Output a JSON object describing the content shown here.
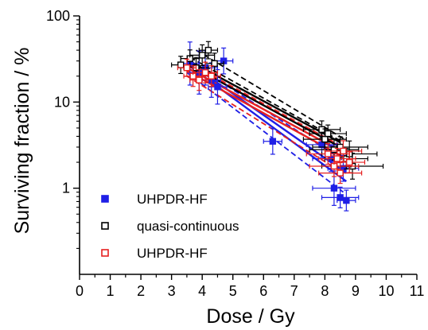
{
  "chart_data": {
    "type": "scatter",
    "title": "",
    "xlabel": "Dose / Gy",
    "ylabel": "Surviving fraction / %",
    "xlim": [
      0,
      11
    ],
    "ylim": [
      0.1,
      100
    ],
    "yscale": "log",
    "x_ticks": [
      0,
      1,
      2,
      3,
      4,
      5,
      6,
      7,
      8,
      9,
      10,
      11
    ],
    "y_ticks": [
      1,
      10,
      100
    ],
    "x_tick_labels": [
      "0",
      "1",
      "2",
      "3",
      "4",
      "5",
      "6",
      "7",
      "8",
      "9",
      "10",
      "11"
    ],
    "y_tick_labels": [
      "1",
      "10",
      "100"
    ],
    "grid": false,
    "legend_position": "bottom-left",
    "series": [
      {
        "name": "UHPDR-HF",
        "color": "#1f1fe6",
        "marker": "filled-square",
        "points": [
          {
            "x": 3.6,
            "y": 28,
            "xerr": 0.3,
            "yerr": 0.25
          },
          {
            "x": 3.9,
            "y": 22,
            "xerr": 0.3,
            "yerr": 0.25
          },
          {
            "x": 4.1,
            "y": 25,
            "xerr": 0.4,
            "yerr": 0.2
          },
          {
            "x": 4.3,
            "y": 18,
            "xerr": 0.3,
            "yerr": 0.2
          },
          {
            "x": 4.7,
            "y": 30,
            "xerr": 0.3,
            "yerr": 0.15
          },
          {
            "x": 4.5,
            "y": 15,
            "xerr": 0.3,
            "yerr": 0.2
          },
          {
            "x": 6.3,
            "y": 3.5,
            "xerr": 0.3,
            "yerr": 0.15
          },
          {
            "x": 7.9,
            "y": 3.2,
            "xerr": 0.5,
            "yerr": 0.15
          },
          {
            "x": 8.2,
            "y": 2.2,
            "xerr": 0.6,
            "yerr": 0.15
          },
          {
            "x": 8.3,
            "y": 1.0,
            "xerr": 0.7,
            "yerr": 0.2
          },
          {
            "x": 8.5,
            "y": 0.78,
            "xerr": 0.6,
            "yerr": 0.12
          },
          {
            "x": 8.7,
            "y": 0.72,
            "xerr": 0.3,
            "yerr": 0.12
          },
          {
            "x": 8.6,
            "y": 1.7,
            "xerr": 0.5,
            "yerr": 0.15
          }
        ],
        "fits": [
          {
            "x": [
              3.6,
              8.7
            ],
            "y": [
              26,
              1.2
            ],
            "style": "solid"
          },
          {
            "x": [
              3.6,
              8.7
            ],
            "y": [
              28,
              1.5
            ],
            "style": "solid"
          },
          {
            "x": [
              3.5,
              8.6
            ],
            "y": [
              22,
              0.9
            ],
            "style": "dashed"
          },
          {
            "x": [
              3.6,
              8.8
            ],
            "y": [
              29,
              1.9
            ],
            "style": "dashed"
          }
        ]
      },
      {
        "name": "quasi-continuous",
        "color": "#000000",
        "marker": "open-square",
        "points": [
          {
            "x": 3.3,
            "y": 27,
            "xerr": 0.3,
            "yerr": 0.1
          },
          {
            "x": 3.6,
            "y": 32,
            "xerr": 0.3,
            "yerr": 0.1
          },
          {
            "x": 3.8,
            "y": 25,
            "xerr": 0.4,
            "yerr": 0.12
          },
          {
            "x": 4.0,
            "y": 35,
            "xerr": 0.4,
            "yerr": 0.12
          },
          {
            "x": 4.2,
            "y": 40,
            "xerr": 0.3,
            "yerr": 0.1
          },
          {
            "x": 4.4,
            "y": 28,
            "xerr": 0.3,
            "yerr": 0.12
          },
          {
            "x": 7.9,
            "y": 4.8,
            "xerr": 0.6,
            "yerr": 0.1
          },
          {
            "x": 8.0,
            "y": 3.7,
            "xerr": 0.7,
            "yerr": 0.12
          },
          {
            "x": 8.1,
            "y": 4.3,
            "xerr": 0.6,
            "yerr": 0.1
          },
          {
            "x": 8.3,
            "y": 2.8,
            "xerr": 0.8,
            "yerr": 0.12
          },
          {
            "x": 8.5,
            "y": 3.0,
            "xerr": 0.9,
            "yerr": 0.12
          },
          {
            "x": 8.7,
            "y": 2.2,
            "xerr": 0.7,
            "yerr": 0.12
          },
          {
            "x": 8.9,
            "y": 1.8,
            "xerr": 1.0,
            "yerr": 0.15
          },
          {
            "x": 8.8,
            "y": 2.5,
            "xerr": 0.9,
            "yerr": 0.15
          }
        ],
        "fits": [
          {
            "x": [
              3.5,
              8.5
            ],
            "y": [
              28,
              3.0
            ],
            "style": "solid"
          },
          {
            "x": [
              3.5,
              8.5
            ],
            "y": [
              31,
              3.4
            ],
            "style": "solid"
          },
          {
            "x": [
              3.6,
              8.6
            ],
            "y": [
              33,
              3.4
            ],
            "style": "dashed"
          },
          {
            "x": [
              3.8,
              8.7
            ],
            "y": [
              40,
              3.6
            ],
            "style": "dashed"
          }
        ]
      },
      {
        "name": "UHPDR-HF",
        "color": "#e62020",
        "marker": "open-square",
        "points": [
          {
            "x": 3.5,
            "y": 25,
            "xerr": 0.3,
            "yerr": 0.1
          },
          {
            "x": 3.7,
            "y": 20,
            "xerr": 0.3,
            "yerr": 0.12
          },
          {
            "x": 3.9,
            "y": 18,
            "xerr": 0.3,
            "yerr": 0.12
          },
          {
            "x": 4.1,
            "y": 22,
            "xerr": 0.4,
            "yerr": 0.12
          },
          {
            "x": 4.3,
            "y": 20,
            "xerr": 0.3,
            "yerr": 0.12
          },
          {
            "x": 8.1,
            "y": 2.5,
            "xerr": 0.7,
            "yerr": 0.12
          },
          {
            "x": 8.3,
            "y": 1.8,
            "xerr": 0.8,
            "yerr": 0.12
          },
          {
            "x": 8.4,
            "y": 2.2,
            "xerr": 0.6,
            "yerr": 0.12
          },
          {
            "x": 8.5,
            "y": 1.5,
            "xerr": 0.7,
            "yerr": 0.12
          },
          {
            "x": 8.6,
            "y": 2.7,
            "xerr": 0.6,
            "yerr": 0.12
          },
          {
            "x": 8.8,
            "y": 2.0,
            "xerr": 0.5,
            "yerr": 0.12
          }
        ],
        "fits": [
          {
            "x": [
              3.5,
              8.6
            ],
            "y": [
              23,
              2.3
            ],
            "style": "solid"
          },
          {
            "x": [
              3.5,
              8.6
            ],
            "y": [
              25,
              2.6
            ],
            "style": "solid"
          },
          {
            "x": [
              3.5,
              8.6
            ],
            "y": [
              20,
              1.5
            ],
            "style": "dashed"
          },
          {
            "x": [
              3.6,
              8.6
            ],
            "y": [
              28,
              3.0
            ],
            "style": "dashed"
          }
        ]
      }
    ]
  }
}
